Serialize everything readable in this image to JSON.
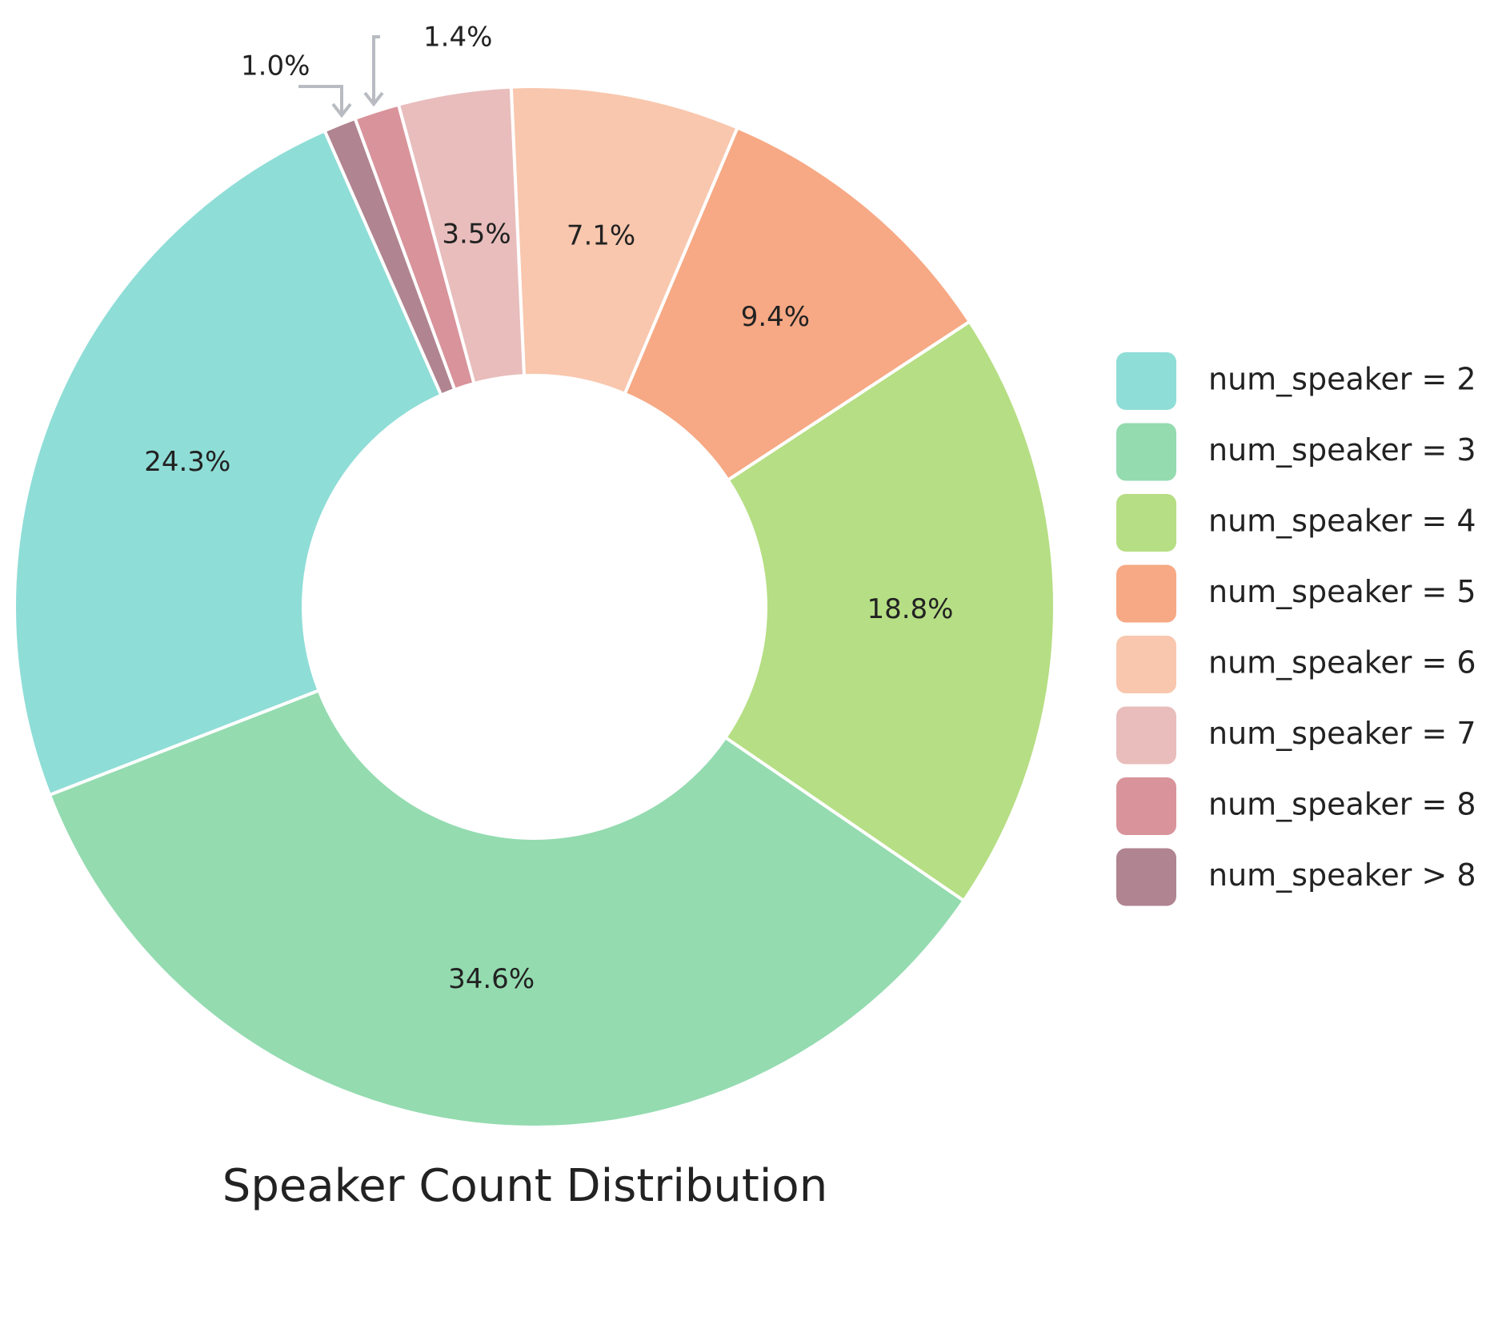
{
  "chart_data": {
    "type": "donut",
    "title": "Speaker Count Distribution",
    "categories": [
      "num_speaker = 2",
      "num_speaker = 3",
      "num_speaker = 4",
      "num_speaker = 5",
      "num_speaker = 6",
      "num_speaker = 7",
      "num_speaker = 8",
      "num_speaker > 8"
    ],
    "values": [
      24.3,
      34.6,
      18.8,
      9.4,
      7.1,
      3.5,
      1.4,
      1.0
    ],
    "value_labels": [
      "24.3%",
      "34.6%",
      "18.8%",
      "9.4%",
      "7.1%",
      "3.5%",
      "1.4%",
      "1.0%"
    ],
    "colors": [
      "#8fddd7",
      "#94dbb0",
      "#b6de84",
      "#f6a984",
      "#f8c7ae",
      "#e8bdbc",
      "#d9939a",
      "#b08490"
    ],
    "direction": "counterclockwise",
    "legend": "right"
  }
}
